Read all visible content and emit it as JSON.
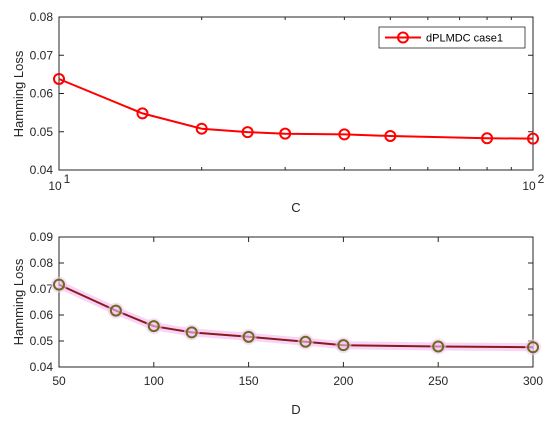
{
  "chart_data": [
    {
      "type": "line",
      "xscale": "log",
      "xlabel": "C",
      "ylabel": "Hamming Loss",
      "xlim": [
        10,
        100
      ],
      "ylim": [
        0.04,
        0.08
      ],
      "xticks": [
        10,
        100
      ],
      "xtick_labels": [
        {
          "base": "10",
          "exp": "1"
        },
        {
          "base": "10",
          "exp": "2"
        }
      ],
      "yticks": [
        "0.04",
        "0.05",
        "0.06",
        "0.07",
        "0.08"
      ],
      "grid": false,
      "legend": {
        "position": "top-right",
        "entries": [
          "dPLMDC case1"
        ]
      },
      "series": [
        {
          "name": "dPLMDC case1",
          "color": "#ff0000",
          "marker": "circle",
          "x": [
            10,
            15,
            20,
            25,
            30,
            40,
            50,
            80,
            100
          ],
          "y": [
            0.0638,
            0.0548,
            0.0508,
            0.0499,
            0.0495,
            0.0493,
            0.0489,
            0.0483,
            0.0482
          ]
        }
      ]
    },
    {
      "type": "line",
      "xscale": "linear",
      "xlabel": "D",
      "ylabel": "Hamming Loss",
      "xlim": [
        50,
        300
      ],
      "ylim": [
        0.04,
        0.09
      ],
      "xticks": [
        "50",
        "100",
        "150",
        "200",
        "250",
        "300"
      ],
      "yticks": [
        "0.04",
        "0.05",
        "0.06",
        "0.07",
        "0.08",
        "0.09"
      ],
      "grid": false,
      "series": [
        {
          "color": "#8b1a1a",
          "marker": "circle",
          "marker_edge_color": "#6b6b1e",
          "halo_color": "#f5c6f5",
          "x": [
            50,
            80,
            100,
            120,
            150,
            180,
            200,
            250,
            300
          ],
          "y": [
            0.0717,
            0.0617,
            0.0557,
            0.0533,
            0.0516,
            0.0497,
            0.0484,
            0.0479,
            0.0476
          ]
        }
      ]
    }
  ]
}
